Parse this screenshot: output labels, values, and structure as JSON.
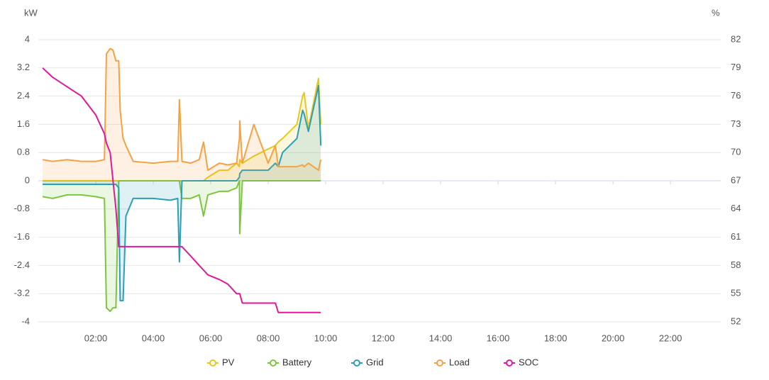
{
  "chart_data": {
    "type": "line",
    "y_label": "kW",
    "y2_label": "%",
    "x": [
      0.15,
      0.5,
      1,
      1.5,
      2,
      2.3,
      2.37,
      2.5,
      2.6,
      2.7,
      2.8,
      2.85,
      2.95,
      3.05,
      3.3,
      4,
      4.6,
      4.85,
      4.91,
      5.0,
      5.3,
      5.6,
      5.75,
      5.9,
      6.3,
      6.6,
      6.9,
      7.0,
      7.01,
      7.1,
      7.5,
      8,
      8.25,
      8.35,
      8.5,
      9,
      9.2,
      9.25,
      9.4,
      9.75,
      9.83
    ],
    "xlim": [
      0,
      23.75
    ],
    "xticks": [
      {
        "value": 2,
        "label": "02:00"
      },
      {
        "value": 4,
        "label": "04:00"
      },
      {
        "value": 6,
        "label": "06:00"
      },
      {
        "value": 8,
        "label": "08:00"
      },
      {
        "value": 10,
        "label": "10:00"
      },
      {
        "value": 12,
        "label": "12:00"
      },
      {
        "value": 14,
        "label": "14:00"
      },
      {
        "value": 16,
        "label": "16:00"
      },
      {
        "value": 18,
        "label": "18:00"
      },
      {
        "value": 20,
        "label": "20:00"
      },
      {
        "value": 22,
        "label": "22:00"
      }
    ],
    "ylim": [
      -4,
      4
    ],
    "yticks": [
      -4,
      -3.2,
      -2.4,
      -1.6,
      -0.8,
      0,
      0.8,
      1.6,
      2.4,
      3.2,
      4
    ],
    "y2lim": [
      52,
      82
    ],
    "y2ticks": [
      52,
      55,
      58,
      61,
      64,
      67,
      70,
      73,
      76,
      79,
      82
    ],
    "grid": true,
    "legend": "bottom",
    "series": [
      {
        "name": "PV",
        "color": "#e8c81a",
        "area": true,
        "values": [
          0,
          0,
          0,
          0,
          0,
          0,
          0,
          0,
          0,
          0,
          0,
          0,
          0,
          0,
          0,
          0,
          0,
          0,
          0,
          0,
          0,
          0,
          0,
          0.1,
          0.3,
          0.3,
          0.5,
          0.4,
          0.6,
          0.5,
          0.7,
          0.9,
          1.0,
          1.1,
          1.2,
          1.6,
          2.4,
          2.5,
          1.5,
          2.9,
          1.6
        ]
      },
      {
        "name": "Battery",
        "color": "#7cc63e",
        "area": true,
        "values": [
          -0.45,
          -0.5,
          -0.4,
          -0.4,
          -0.45,
          -0.5,
          -3.6,
          -3.7,
          -3.6,
          -3.6,
          0,
          0,
          0,
          0,
          0,
          0,
          0,
          0,
          0,
          -0.5,
          -0.5,
          -0.4,
          -1.0,
          -0.4,
          -0.3,
          -0.3,
          -0.2,
          0,
          -1.5,
          0,
          0,
          0,
          0,
          0,
          0,
          0,
          0,
          0,
          0,
          0,
          0
        ]
      },
      {
        "name": "Grid",
        "color": "#2a9fb7",
        "area": true,
        "values": [
          -0.1,
          -0.1,
          -0.1,
          -0.1,
          -0.1,
          -0.1,
          -0.1,
          -0.1,
          -0.1,
          -0.1,
          -0.2,
          -3.4,
          -3.4,
          -1.0,
          -0.5,
          -0.5,
          -0.55,
          -0.5,
          -2.3,
          0,
          0,
          0,
          0,
          0,
          0,
          0,
          0,
          0.1,
          0.2,
          0.3,
          0.3,
          0.3,
          0.5,
          0.4,
          0.8,
          1.2,
          2.0,
          1.9,
          1.4,
          2.7,
          1.0
        ]
      },
      {
        "name": "Load",
        "color": "#f5a243",
        "area": true,
        "values": [
          0.6,
          0.55,
          0.6,
          0.55,
          0.55,
          0.6,
          3.6,
          3.75,
          3.7,
          3.4,
          3.4,
          2.0,
          1.2,
          1.0,
          0.55,
          0.5,
          0.55,
          0.55,
          2.3,
          0.55,
          0.5,
          0.6,
          1.1,
          0.3,
          0.5,
          0.45,
          0.5,
          1.2,
          1.7,
          0.5,
          1.6,
          0.5,
          1.0,
          0.4,
          0.4,
          0.4,
          0.45,
          0.4,
          0.5,
          0.3,
          0.6
        ]
      },
      {
        "name": "SOC",
        "color": "#e0189c",
        "axis": "y2",
        "values": [
          79,
          78,
          77,
          76,
          74,
          72,
          71,
          70,
          67,
          64,
          60,
          60,
          60,
          60,
          60,
          60,
          60,
          60,
          60,
          60,
          59,
          58,
          57.5,
          57,
          56.5,
          56,
          55,
          55,
          55,
          54,
          54,
          54,
          54,
          53,
          53,
          53,
          53,
          53,
          53,
          53,
          53
        ]
      }
    ]
  }
}
